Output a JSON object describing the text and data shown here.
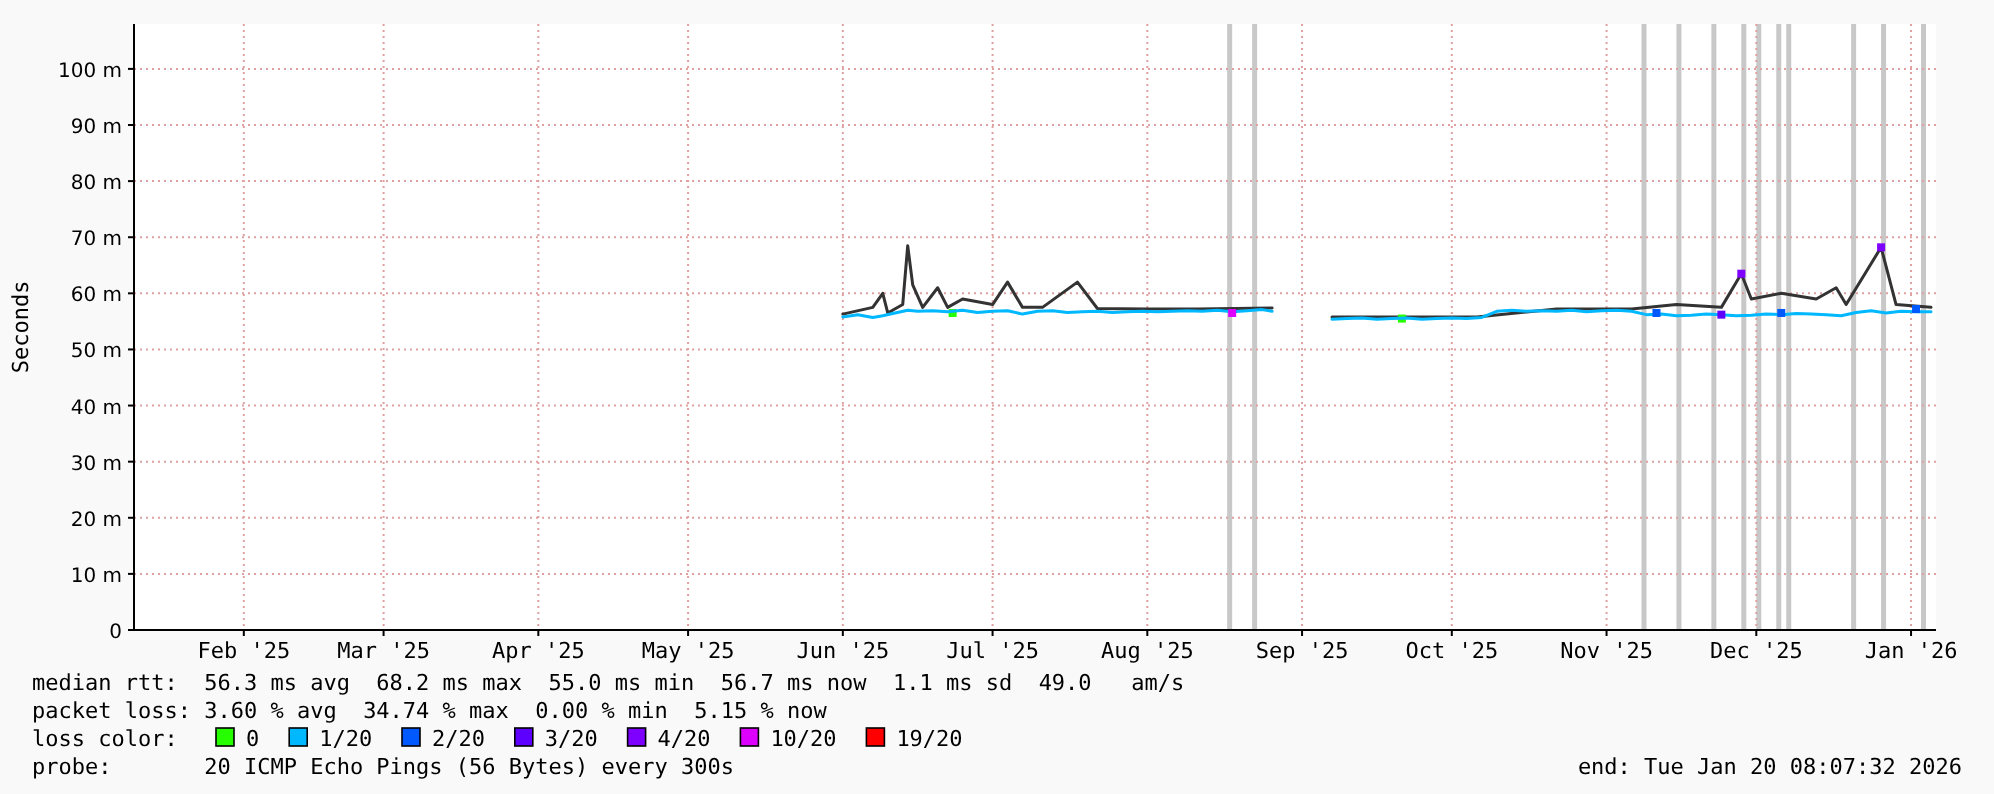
{
  "chart_data": {
    "type": "line",
    "ylabel": "Seconds",
    "xlim": [
      "2025-01-24",
      "2026-01-20"
    ],
    "xticks": [
      {
        "value": "2025-02-15",
        "label": "Feb '25"
      },
      {
        "value": "2025-03-15",
        "label": "Mar '25"
      },
      {
        "value": "2025-04-15",
        "label": "Apr '25"
      },
      {
        "value": "2025-05-15",
        "label": "May '25"
      },
      {
        "value": "2025-06-15",
        "label": "Jun '25"
      },
      {
        "value": "2025-07-15",
        "label": "Jul '25"
      },
      {
        "value": "2025-08-15",
        "label": "Aug '25"
      },
      {
        "value": "2025-09-15",
        "label": "Sep '25"
      },
      {
        "value": "2025-10-15",
        "label": "Oct '25"
      },
      {
        "value": "2025-11-15",
        "label": "Nov '25"
      },
      {
        "value": "2025-12-15",
        "label": "Dec '25"
      },
      {
        "value": "2026-01-15",
        "label": "Jan '26"
      }
    ],
    "ylim": [
      0,
      108
    ],
    "yticks": [
      0,
      {
        "value": 10,
        "label": "10 m"
      },
      {
        "value": 20,
        "label": "20 m"
      },
      {
        "value": 30,
        "label": "30 m"
      },
      {
        "value": 40,
        "label": "40 m"
      },
      {
        "value": 50,
        "label": "50 m"
      },
      {
        "value": 60,
        "label": "60 m"
      },
      {
        "value": 70,
        "label": "70 m"
      },
      {
        "value": 80,
        "label": "80 m"
      },
      {
        "value": 90,
        "label": "90 m"
      },
      {
        "value": 100,
        "label": "100 m"
      }
    ],
    "grid": true,
    "legend": "bottom",
    "legend_title": "loss color:",
    "bands": [
      {
        "axis": "x",
        "from": "2025-08-31",
        "to": "2025-09-01",
        "color": "#c8c8c8"
      },
      {
        "axis": "x",
        "from": "2025-09-05",
        "to": "2025-09-06",
        "color": "#c8c8c8"
      },
      {
        "axis": "x",
        "from": "2025-11-22",
        "to": "2025-11-23",
        "color": "#c8c8c8"
      },
      {
        "axis": "x",
        "from": "2025-11-29",
        "to": "2025-11-30",
        "color": "#c8c8c8"
      },
      {
        "axis": "x",
        "from": "2025-12-06",
        "to": "2025-12-07",
        "color": "#c8c8c8"
      },
      {
        "axis": "x",
        "from": "2025-12-12",
        "to": "2025-12-13",
        "color": "#c8c8c8"
      },
      {
        "axis": "x",
        "from": "2025-12-15",
        "to": "2025-12-16",
        "color": "#c8c8c8"
      },
      {
        "axis": "x",
        "from": "2025-12-19",
        "to": "2025-12-20",
        "color": "#c8c8c8"
      },
      {
        "axis": "x",
        "from": "2025-12-21",
        "to": "2025-12-22",
        "color": "#c8c8c8"
      },
      {
        "axis": "x",
        "from": "2026-01-03",
        "to": "2026-01-04",
        "color": "#c8c8c8"
      },
      {
        "axis": "x",
        "from": "2026-01-09",
        "to": "2026-01-10",
        "color": "#c8c8c8"
      },
      {
        "axis": "x",
        "from": "2026-01-17",
        "to": "2026-01-18",
        "color": "#c8c8c8"
      }
    ],
    "series": [
      {
        "color": "#333333",
        "x": [
          "2025-06-15",
          "2025-06-21",
          "2025-06-23",
          "2025-06-24",
          "2025-06-27",
          "2025-06-28",
          "2025-06-29",
          "2025-07-01",
          "2025-07-04",
          "2025-07-06",
          "2025-07-09",
          "2025-07-12",
          "2025-07-15",
          "2025-07-18",
          "2025-07-21",
          "2025-07-25",
          "2025-08-01",
          "2025-08-05",
          "2025-08-15",
          "2025-08-25",
          "2025-09-09",
          "2025-09-15",
          "2025-09-21",
          "2025-10-05",
          "2025-10-20",
          "2025-11-05",
          "2025-11-20",
          "2025-11-29",
          "2025-12-08",
          "2025-12-12",
          "2025-12-14",
          "2025-12-20",
          "2025-12-27",
          "2025-12-31",
          "2026-01-02",
          "2026-01-09",
          "2026-01-12",
          "2026-01-19"
        ],
        "values": [
          56.3,
          57.5,
          60,
          56.5,
          58,
          68.5,
          61.5,
          57.5,
          61,
          57.5,
          59,
          58.5,
          58,
          62,
          57.5,
          57.5,
          62,
          57.3,
          57.2,
          57.2,
          57.4,
          null,
          55.8,
          55.8,
          55.8,
          57.2,
          57.2,
          58,
          57.5,
          63.5,
          59,
          60,
          59,
          61,
          58,
          68.2,
          58,
          57.5
        ]
      },
      {
        "type": "scatter",
        "marker": "square",
        "name": "0",
        "color": "#26ff00",
        "x": [
          "2025-07-07",
          "2025-10-05"
        ],
        "values": [
          56.5,
          55.5
        ]
      },
      {
        "name": "1/20",
        "color": "#00b8ff",
        "x": [
          "2025-06-15",
          "2025-06-18",
          "2025-06-21",
          "2025-06-23",
          "2025-06-25",
          "2025-06-28",
          "2025-06-30",
          "2025-07-03",
          "2025-07-06",
          "2025-07-09",
          "2025-07-12",
          "2025-07-15",
          "2025-07-18",
          "2025-07-21",
          "2025-07-24",
          "2025-07-27",
          "2025-07-30",
          "2025-08-02",
          "2025-08-05",
          "2025-08-08",
          "2025-08-11",
          "2025-08-14",
          "2025-08-17",
          "2025-08-20",
          "2025-08-23",
          "2025-08-26",
          "2025-08-29",
          "2025-09-01",
          "2025-09-04",
          "2025-09-07",
          "2025-09-09",
          "2025-09-15",
          "2025-09-21",
          "2025-09-24",
          "2025-09-27",
          "2025-09-30",
          "2025-10-03",
          "2025-10-06",
          "2025-10-09",
          "2025-10-12",
          "2025-10-15",
          "2025-10-18",
          "2025-10-21",
          "2025-10-24",
          "2025-10-27",
          "2025-10-30",
          "2025-11-02",
          "2025-11-05",
          "2025-11-08",
          "2025-11-11",
          "2025-11-14",
          "2025-11-17",
          "2025-11-20",
          "2025-11-23",
          "2025-11-26",
          "2025-11-29",
          "2025-12-02",
          "2025-12-05",
          "2025-12-08",
          "2025-12-11",
          "2025-12-14",
          "2025-12-17",
          "2025-12-20",
          "2025-12-23",
          "2025-12-26",
          "2025-12-29",
          "2026-01-01",
          "2026-01-04",
          "2026-01-07",
          "2026-01-10",
          "2026-01-13",
          "2026-01-16",
          "2026-01-19"
        ],
        "values": [
          55.8,
          56.2,
          55.7,
          56.0,
          56.4,
          57.0,
          56.8,
          56.9,
          56.7,
          57.0,
          56.6,
          56.8,
          56.9,
          56.3,
          56.8,
          56.9,
          56.6,
          56.7,
          56.8,
          56.6,
          56.7,
          56.8,
          56.7,
          56.8,
          56.9,
          56.8,
          57.0,
          56.7,
          56.9,
          57.1,
          56.8,
          null,
          55.4,
          55.5,
          55.6,
          55.4,
          55.5,
          55.6,
          55.4,
          55.5,
          55.6,
          55.5,
          55.7,
          56.8,
          57.0,
          56.8,
          56.9,
          56.8,
          57.0,
          56.7,
          56.9,
          57.0,
          56.8,
          56.2,
          56.3,
          56.0,
          56.1,
          56.3,
          56.2,
          56.0,
          56.1,
          56.3,
          56.2,
          56.4,
          56.3,
          56.2,
          56.0,
          56.6,
          56.9,
          56.5,
          56.8,
          56.7,
          56.7
        ]
      },
      {
        "type": "scatter",
        "marker": "square",
        "name": "2/20",
        "color": "#0059ff",
        "x": [
          "2025-11-25",
          "2025-12-20",
          "2026-01-16"
        ],
        "values": [
          56.5,
          56.5,
          57.2
        ]
      },
      {
        "type": "scatter",
        "marker": "square",
        "name": "3/20",
        "color": "#5e00ff",
        "x": [
          "2025-12-08"
        ],
        "values": [
          56.2
        ]
      },
      {
        "type": "scatter",
        "marker": "square",
        "name": "4/20",
        "color": "#7e00ff",
        "x": [
          "2025-12-12",
          "2026-01-09"
        ],
        "values": [
          63.5,
          68.2
        ]
      },
      {
        "type": "scatter",
        "marker": "square",
        "name": "10/20",
        "color": "#dd00ff",
        "x": [
          "2025-09-01"
        ],
        "values": [
          56.5
        ]
      },
      {
        "type": "scatter",
        "name": "19/20",
        "color": "#ff0000"
      }
    ],
    "annotations": [
      "median rtt:  56.3 ms avg  68.2 ms max  55.0 ms min  56.7 ms now  1.1 ms sd  49.0   am/s",
      "packet loss: 3.60 % avg  34.74 % max  0.00 % min  5.15 % now",
      "probe:       20 ICMP Echo Pings (56 Bytes) every 300s",
      "end: Tue Jan 20 08:07:32 2026"
    ]
  }
}
